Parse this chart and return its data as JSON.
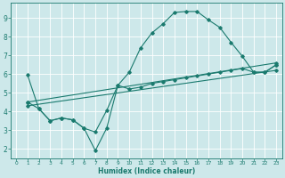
{
  "bg_color": "#cde8ea",
  "grid_color": "#ffffff",
  "line_color": "#1a7a6e",
  "xlabel": "Humidex (Indice chaleur)",
  "xlim": [
    -0.5,
    23.5
  ],
  "ylim": [
    1.5,
    9.8
  ],
  "yticks": [
    2,
    3,
    4,
    5,
    6,
    7,
    8,
    9
  ],
  "xticks": [
    0,
    1,
    2,
    3,
    4,
    5,
    6,
    7,
    8,
    9,
    10,
    11,
    12,
    13,
    14,
    15,
    16,
    17,
    18,
    19,
    20,
    21,
    22,
    23
  ],
  "line1_x": [
    1,
    2,
    3,
    4,
    5,
    6,
    7,
    8,
    9,
    10,
    11,
    12,
    13,
    14,
    15,
    16,
    17,
    18,
    19,
    20,
    21,
    22,
    23
  ],
  "line1_y": [
    5.95,
    4.15,
    3.5,
    3.65,
    3.55,
    3.1,
    1.9,
    3.1,
    5.4,
    6.1,
    7.4,
    8.2,
    8.7,
    9.3,
    9.35,
    9.35,
    8.9,
    8.5,
    7.7,
    6.95,
    6.1,
    6.1,
    6.5
  ],
  "line2_x": [
    1,
    2,
    3,
    4,
    5,
    6,
    7,
    8,
    9,
    10,
    11,
    12,
    13,
    14,
    15,
    16,
    17,
    18,
    19,
    20,
    21,
    22,
    23
  ],
  "line2_y": [
    4.5,
    4.15,
    3.5,
    3.65,
    3.55,
    3.1,
    2.9,
    4.05,
    5.4,
    5.2,
    5.3,
    5.5,
    5.6,
    5.7,
    5.8,
    5.9,
    6.0,
    6.1,
    6.2,
    6.3,
    6.1,
    6.1,
    6.5
  ],
  "line3_x": [
    1,
    23
  ],
  "line3_y": [
    4.3,
    6.2
  ],
  "line4_x": [
    1,
    23
  ],
  "line4_y": [
    4.5,
    6.6
  ]
}
